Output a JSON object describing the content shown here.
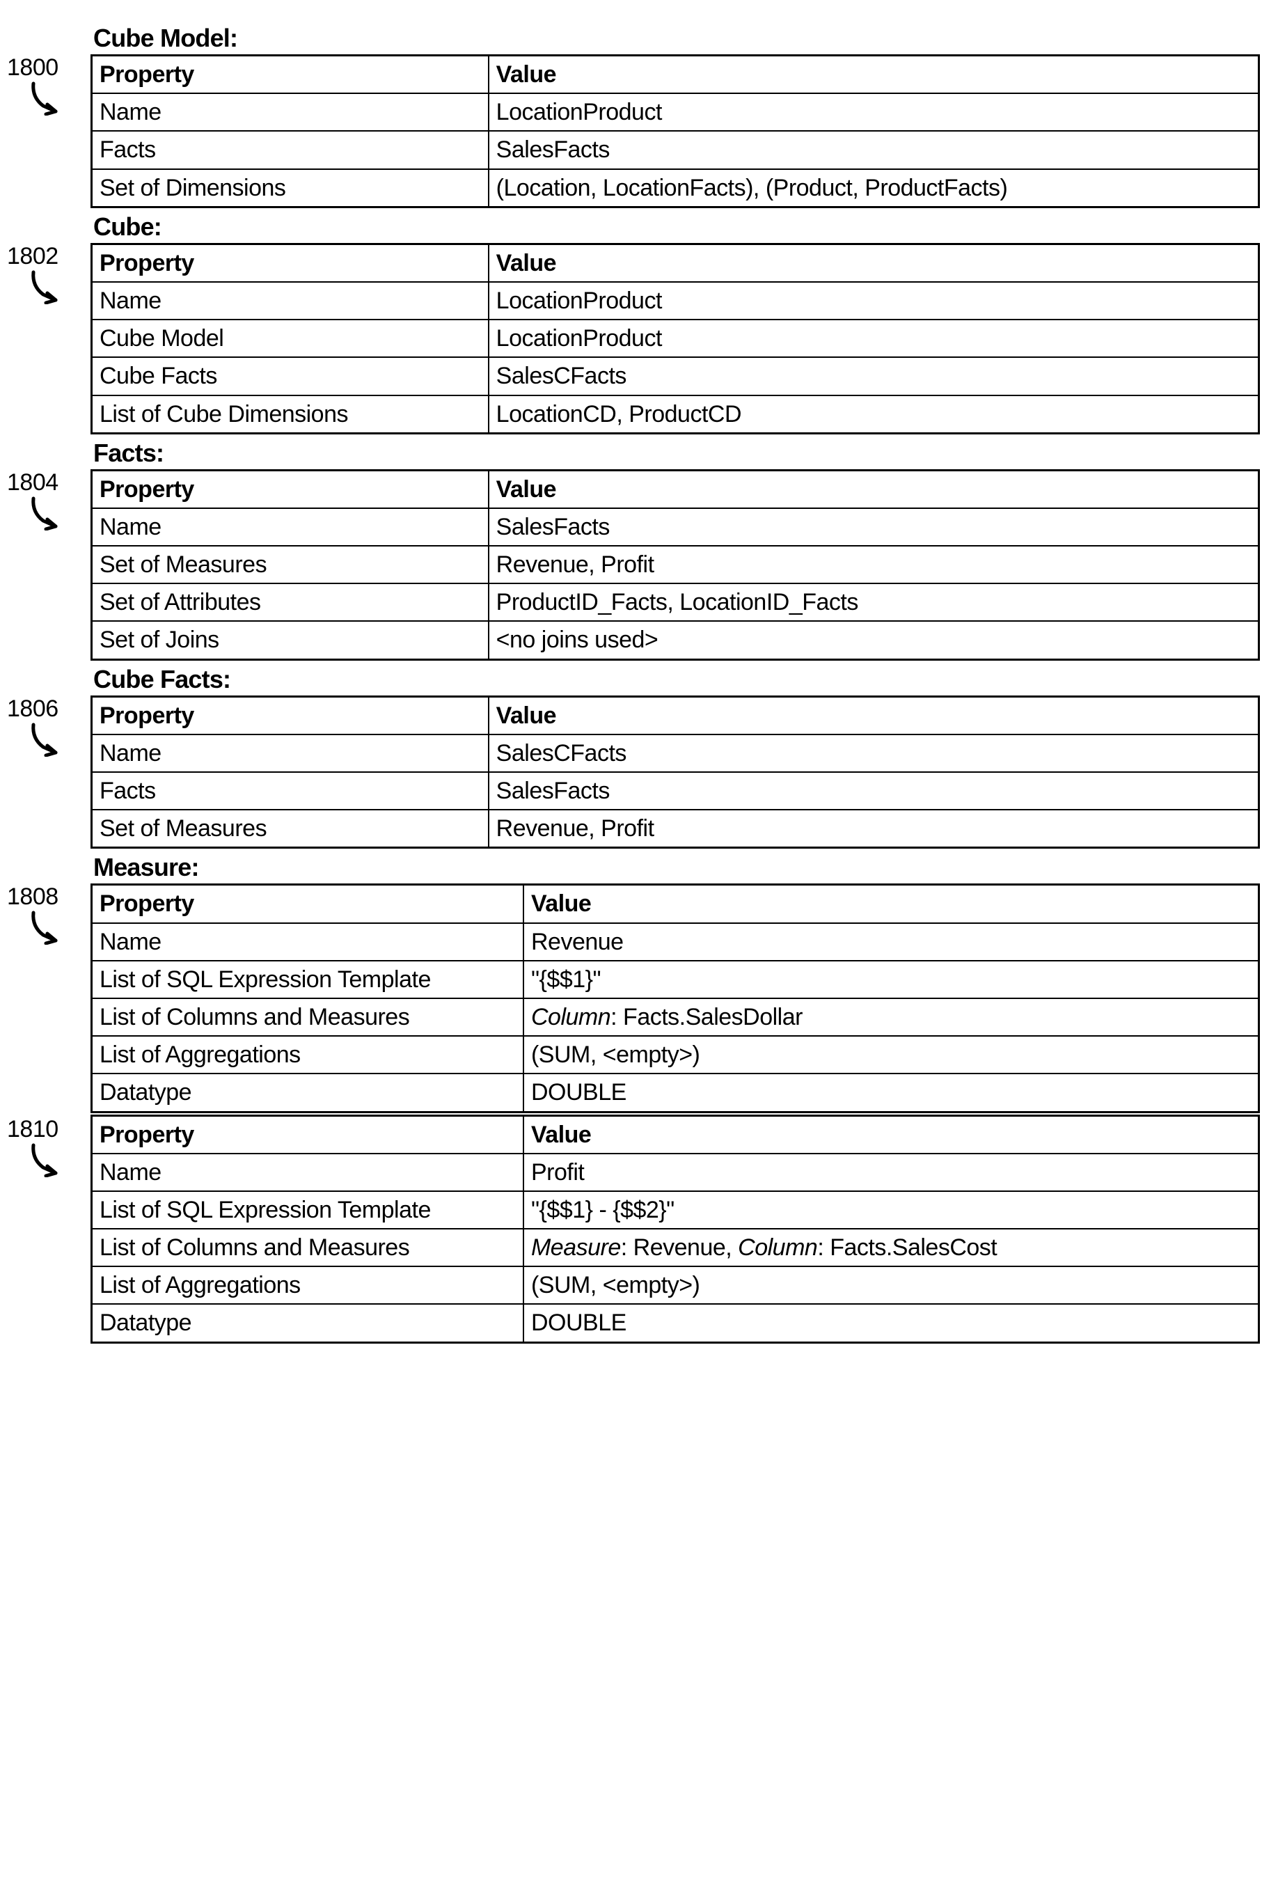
{
  "colors": {
    "text": "#000000",
    "border": "#000000",
    "background": "#ffffff"
  },
  "typography": {
    "base_fontsize": 34,
    "title_fontsize": 36,
    "ref_fontsize": 34,
    "font_family": "Arial, Helvetica, sans-serif",
    "title_weight": "bold",
    "header_weight": "bold"
  },
  "layout": {
    "ref_col_width": 120,
    "border_outer": 3,
    "border_inner": 2
  },
  "headers": {
    "property": "Property",
    "value": "Value"
  },
  "sections": [
    {
      "title": "Cube Model:",
      "ref": "1800",
      "col_widths": [
        "34%",
        "66%"
      ],
      "rows": [
        {
          "prop": "Name",
          "val": "LocationProduct"
        },
        {
          "prop": "Facts",
          "val": "SalesFacts"
        },
        {
          "prop": "Set of Dimensions",
          "val": "(Location, LocationFacts), (Product, ProductFacts)"
        }
      ]
    },
    {
      "title": "Cube:",
      "ref": "1802",
      "col_widths": [
        "34%",
        "66%"
      ],
      "rows": [
        {
          "prop": "Name",
          "val": "LocationProduct"
        },
        {
          "prop": "Cube Model",
          "val": "LocationProduct"
        },
        {
          "prop": "Cube Facts",
          "val": "SalesCFacts"
        },
        {
          "prop": "List of Cube Dimensions",
          "val": "LocationCD, ProductCD"
        }
      ]
    },
    {
      "title": "Facts:",
      "ref": "1804",
      "col_widths": [
        "34%",
        "66%"
      ],
      "rows": [
        {
          "prop": "Name",
          "val": "SalesFacts"
        },
        {
          "prop": "Set of Measures",
          "val": "Revenue, Profit"
        },
        {
          "prop": "Set of Attributes",
          "val": "ProductID_Facts, LocationID_Facts"
        },
        {
          "prop": "Set of Joins",
          "val": "<no joins used>"
        }
      ]
    },
    {
      "title": "Cube Facts:",
      "ref": "1806",
      "col_widths": [
        "34%",
        "66%"
      ],
      "rows": [
        {
          "prop": "Name",
          "val": "SalesCFacts"
        },
        {
          "prop": "Facts",
          "val": "SalesFacts"
        },
        {
          "prop": "Set of Measures",
          "val": "Revenue, Profit"
        }
      ]
    },
    {
      "title": "Measure:",
      "ref": "1808",
      "col_widths": [
        "37%",
        "63%"
      ],
      "rows": [
        {
          "prop": "Name",
          "val": "Revenue"
        },
        {
          "prop": "List of SQL Expression Template",
          "val": "\"{$$1}\""
        },
        {
          "prop": "List of Columns and Measures",
          "val_html": "<span class=\"italic\">Column</span>: Facts.SalesDollar"
        },
        {
          "prop": "List of Aggregations",
          "val": "(SUM, <empty>)"
        },
        {
          "prop": "Datatype",
          "val": "DOUBLE"
        }
      ]
    },
    {
      "title": null,
      "ref": "1810",
      "col_widths": [
        "37%",
        "63%"
      ],
      "rows": [
        {
          "prop": "Name",
          "val": "Profit"
        },
        {
          "prop": "List of SQL Expression Template",
          "val": "\"{$$1} - {$$2}\""
        },
        {
          "prop": "List of Columns and Measures",
          "val_html": "<span class=\"italic\">Measure</span>: Revenue, <span class=\"italic\">Column</span>: Facts.SalesCost"
        },
        {
          "prop": "List of Aggregations",
          "val": "(SUM, <empty>)"
        },
        {
          "prop": "Datatype",
          "val": "DOUBLE"
        }
      ]
    }
  ]
}
